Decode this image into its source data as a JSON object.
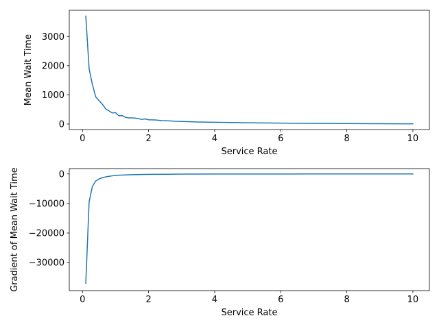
{
  "chart_data": [
    {
      "type": "line",
      "title": "",
      "xlabel": "Service Rate",
      "ylabel": "Mean Wait Time",
      "xlim": [
        -0.4,
        10.5
      ],
      "ylim": [
        -190,
        3900
      ],
      "xticks": [
        0,
        2,
        4,
        6,
        8,
        10
      ],
      "xtick_labels": [
        "0",
        "2",
        "4",
        "6",
        "8",
        "10"
      ],
      "yticks": [
        0,
        1000,
        2000,
        3000
      ],
      "ytick_labels": [
        "0",
        "1000",
        "2000",
        "3000"
      ],
      "grid": false,
      "series": [
        {
          "color": "#1f77b4",
          "x": [
            0.1,
            0.2,
            0.3,
            0.4,
            0.5,
            0.6,
            0.7,
            0.8,
            0.9,
            1.0,
            1.1,
            1.2,
            1.3,
            1.4,
            1.5,
            1.6,
            1.7,
            1.8,
            1.9,
            2.0,
            2.2,
            2.4,
            2.6,
            2.8,
            3.0,
            3.2,
            3.5,
            3.8,
            4.0,
            4.5,
            5.0,
            5.5,
            6.0,
            6.5,
            7.0,
            7.5,
            8.0,
            8.5,
            9.0,
            9.5,
            10.0
          ],
          "y": [
            3700,
            1900,
            1350,
            930,
            800,
            680,
            520,
            450,
            380,
            390,
            280,
            290,
            230,
            210,
            210,
            200,
            180,
            160,
            175,
            145,
            140,
            115,
            110,
            95,
            85,
            80,
            70,
            62,
            60,
            52,
            42,
            35,
            30,
            25,
            22,
            18,
            15,
            12,
            10,
            8,
            7
          ]
        }
      ]
    },
    {
      "type": "line",
      "title": "",
      "xlabel": "Service Rate",
      "ylabel": "Gradient of Mean Wait Time",
      "xlim": [
        -0.4,
        10.5
      ],
      "ylim": [
        -39500,
        1800
      ],
      "xticks": [
        0,
        2,
        4,
        6,
        8,
        10
      ],
      "xtick_labels": [
        "0",
        "2",
        "4",
        "6",
        "8",
        "10"
      ],
      "yticks": [
        0,
        -10000,
        -20000,
        -30000
      ],
      "ytick_labels": [
        "0",
        "−10000",
        "−20000",
        "−30000"
      ],
      "grid": false,
      "series": [
        {
          "color": "#1f77b4",
          "x": [
            0.1,
            0.2,
            0.3,
            0.4,
            0.5,
            0.6,
            0.7,
            0.8,
            0.9,
            1.0,
            1.2,
            1.5,
            2.0,
            2.5,
            3.0,
            4.0,
            5.0,
            6.0,
            7.0,
            8.0,
            9.0,
            10.0
          ],
          "y": [
            -37000,
            -9500,
            -4200,
            -2400,
            -1700,
            -1300,
            -1000,
            -800,
            -650,
            -500,
            -380,
            -250,
            -150,
            -100,
            -70,
            -40,
            -25,
            -18,
            -12,
            -9,
            -7,
            -5
          ]
        }
      ]
    }
  ]
}
